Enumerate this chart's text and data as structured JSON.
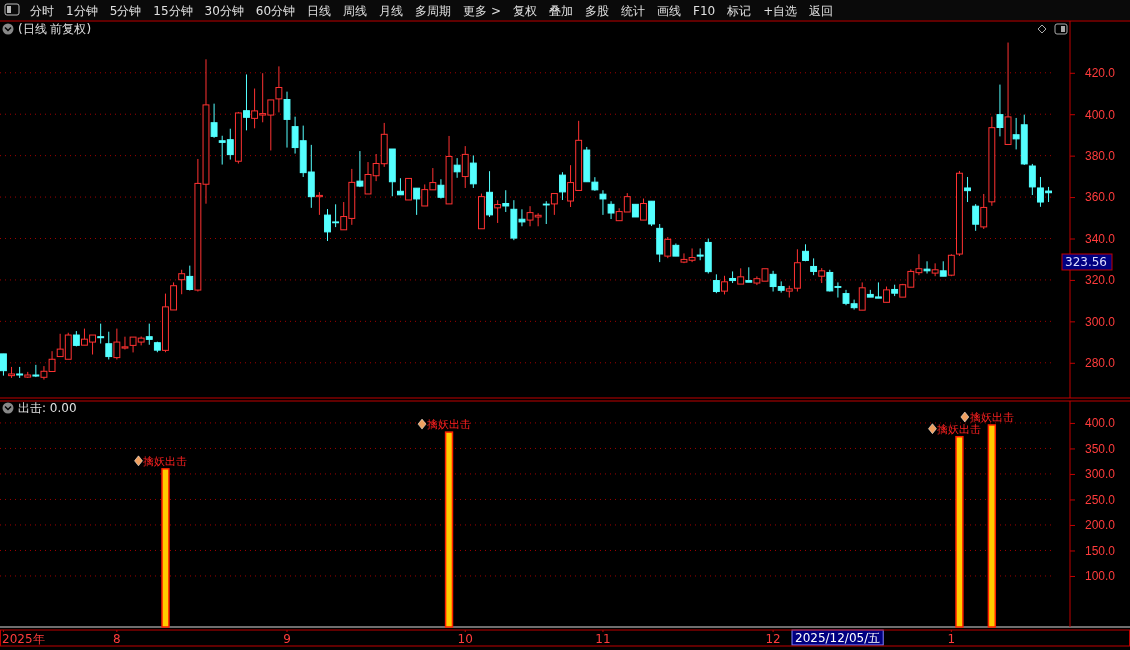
{
  "chart_data": [
    {
      "type": "candlestick",
      "title": "(日线 前复权)",
      "annotations": [
        "分时",
        "1分钟",
        "5分钟",
        "15分钟",
        "30分钟",
        "60分钟",
        "日线",
        "周线",
        "月线",
        "多周期",
        "更多 >",
        "复权",
        "叠加",
        "多股",
        "统计",
        "画线",
        "F10",
        "标记",
        "+自选",
        "返回",
        "323.56"
      ],
      "categories": [
        null,
        null,
        null,
        null,
        null,
        null,
        null,
        null,
        null,
        null,
        null,
        null,
        null,
        null,
        null,
        null,
        null,
        null,
        null,
        null,
        null,
        null,
        null,
        null,
        null,
        null,
        null,
        null,
        null,
        null,
        null,
        null,
        null,
        null,
        null,
        null,
        null,
        null,
        null,
        null,
        null,
        null,
        null,
        null,
        null,
        null,
        null,
        null,
        null,
        null,
        null,
        null,
        null,
        null,
        null,
        null,
        null,
        null,
        null,
        null,
        null,
        null,
        null,
        null,
        null,
        null,
        null,
        null,
        null,
        null,
        null,
        null,
        null,
        null,
        null,
        null,
        null,
        null,
        null,
        null,
        null,
        null,
        null,
        null,
        null,
        null,
        null,
        null,
        null,
        null,
        null,
        null,
        null,
        null,
        null,
        null,
        null,
        null,
        null,
        null,
        null,
        null,
        null,
        null,
        null,
        null,
        null,
        null,
        null,
        null,
        null,
        null,
        null,
        null,
        null,
        null,
        null,
        null,
        null,
        null,
        null,
        null,
        null,
        null,
        null,
        null,
        null,
        null,
        null,
        null
      ],
      "ohlc": [
        [
          284.3,
          284.3,
          273.8,
          276.2
        ],
        [
          273.8,
          278.0,
          272.7,
          274.6
        ],
        [
          274.6,
          278.0,
          272.7,
          274.1
        ],
        [
          273.1,
          275.6,
          272.7,
          274.1
        ],
        [
          274.1,
          279.0,
          273.1,
          273.6
        ],
        [
          273.0,
          278.4,
          271.9,
          275.9
        ],
        [
          275.8,
          285.6,
          275.8,
          281.7
        ],
        [
          283.0,
          294.0,
          283.0,
          286.6
        ],
        [
          281.7,
          294.5,
          281.7,
          293.4
        ],
        [
          293.4,
          295.3,
          287.9,
          288.4
        ],
        [
          288.5,
          296.5,
          288.5,
          291.4
        ],
        [
          290.0,
          293.4,
          284.0,
          293.4
        ],
        [
          292.6,
          298.9,
          289.3,
          292.1
        ],
        [
          289.2,
          295.0,
          281.6,
          283.0
        ],
        [
          282.5,
          296.5,
          281.6,
          290.0
        ],
        [
          287.1,
          292.6,
          286.4,
          287.7
        ],
        [
          288.4,
          292.4,
          285.0,
          292.4
        ],
        [
          290.0,
          292.7,
          288.4,
          291.9
        ],
        [
          292.6,
          298.9,
          288.7,
          291.3
        ],
        [
          289.7,
          290.2,
          285.1,
          286.1
        ],
        [
          286.0,
          313.4,
          285.1,
          307.0
        ],
        [
          305.5,
          318.8,
          305.5,
          317.2
        ],
        [
          320.1,
          324.9,
          313.1,
          323.0
        ],
        [
          321.7,
          326.9,
          314.9,
          315.4
        ],
        [
          315.1,
          378.4,
          314.4,
          366.6
        ],
        [
          366.2,
          426.5,
          356.8,
          404.5
        ],
        [
          395.9,
          405.1,
          388.6,
          389.3
        ],
        [
          387.2,
          389.6,
          375.7,
          386.4
        ],
        [
          387.7,
          393.0,
          378.1,
          380.5
        ],
        [
          377.3,
          401.1,
          376.2,
          400.6
        ],
        [
          401.7,
          419.2,
          392.2,
          398.5
        ],
        [
          398.0,
          412.4,
          393.2,
          401.6
        ],
        [
          399.6,
          419.8,
          396.1,
          400.3
        ],
        [
          399.6,
          406.9,
          382.5,
          406.9
        ],
        [
          407.4,
          423.1,
          400.9,
          412.9
        ],
        [
          407.1,
          410.9,
          383.9,
          397.5
        ],
        [
          394.0,
          398.8,
          381.0,
          383.9
        ],
        [
          387.2,
          394.5,
          369.7,
          371.8
        ],
        [
          372.1,
          385.2,
          354.8,
          360.2
        ],
        [
          360.2,
          362.4,
          351.4,
          360.8
        ],
        [
          351.3,
          354.2,
          338.8,
          343.2
        ],
        [
          348.0,
          356.5,
          345.5,
          347.6
        ],
        [
          344.2,
          357.6,
          344.2,
          350.6
        ],
        [
          349.7,
          373.6,
          346.6,
          367.1
        ],
        [
          367.7,
          382.2,
          364.8,
          365.3
        ],
        [
          361.5,
          376.9,
          361.5,
          370.9
        ],
        [
          370.3,
          380.8,
          367.7,
          376.2
        ],
        [
          376.1,
          395.8,
          374.6,
          390.3
        ],
        [
          383.2,
          383.2,
          360.4,
          367.4
        ],
        [
          362.8,
          369.1,
          361.1,
          361.1
        ],
        [
          358.6,
          369.0,
          358.6,
          369.0
        ],
        [
          364.3,
          364.3,
          351.4,
          359.1
        ],
        [
          355.7,
          366.1,
          355.7,
          363.6
        ],
        [
          363.5,
          374.0,
          363.5,
          367.0
        ],
        [
          365.7,
          368.6,
          359.3,
          359.9
        ],
        [
          356.7,
          389.5,
          356.7,
          379.6
        ],
        [
          375.4,
          378.8,
          369.3,
          372.2
        ],
        [
          369.9,
          384.6,
          364.4,
          380.6
        ],
        [
          376.4,
          380.1,
          364.4,
          366.4
        ],
        [
          344.7,
          361.7,
          344.7,
          360.2
        ],
        [
          362.3,
          372.5,
          350.4,
          351.4
        ],
        [
          354.8,
          358.5,
          347.5,
          356.4
        ],
        [
          356.9,
          363.3,
          352.8,
          355.7
        ],
        [
          354.1,
          358.5,
          339.2,
          340.2
        ],
        [
          349.3,
          354.1,
          345.9,
          348.0
        ],
        [
          348.9,
          355.6,
          345.9,
          352.5
        ],
        [
          350.4,
          352.2,
          345.9,
          351.2
        ],
        [
          356.6,
          358.0,
          347.0,
          356.2
        ],
        [
          356.7,
          361.7,
          351.4,
          361.7
        ],
        [
          370.6,
          372.0,
          358.6,
          362.5
        ],
        [
          358.1,
          375.4,
          355.2,
          367.0
        ],
        [
          363.2,
          396.8,
          363.2,
          387.4
        ],
        [
          382.7,
          384.2,
          367.4,
          367.4
        ],
        [
          367.2,
          369.6,
          363.0,
          363.5
        ],
        [
          361.4,
          363.3,
          351.4,
          359.1
        ],
        [
          356.5,
          358.0,
          349.4,
          352.3
        ],
        [
          348.6,
          354.6,
          348.6,
          353.0
        ],
        [
          352.8,
          361.9,
          352.8,
          360.2
        ],
        [
          356.5,
          356.5,
          350.4,
          350.4
        ],
        [
          348.9,
          359.3,
          348.9,
          356.9
        ],
        [
          358.0,
          358.0,
          346.0,
          347.0
        ],
        [
          344.9,
          347.0,
          328.6,
          332.5
        ],
        [
          331.5,
          340.7,
          330.5,
          339.6
        ],
        [
          336.7,
          337.6,
          331.5,
          331.5
        ],
        [
          328.6,
          332.8,
          328.1,
          329.9
        ],
        [
          329.5,
          335.2,
          328.6,
          330.8
        ],
        [
          332.0,
          335.2,
          329.5,
          331.5
        ],
        [
          338.1,
          340.0,
          323.1,
          324.0
        ],
        [
          319.7,
          322.7,
          313.6,
          314.4
        ],
        [
          314.6,
          322.0,
          313.0,
          319.1
        ],
        [
          320.7,
          324.1,
          318.5,
          319.7
        ],
        [
          318.0,
          325.6,
          318.0,
          321.5
        ],
        [
          319.7,
          326.1,
          318.9,
          318.9
        ],
        [
          318.5,
          321.7,
          317.5,
          320.6
        ],
        [
          319.4,
          325.4,
          319.4,
          325.4
        ],
        [
          322.7,
          324.4,
          314.4,
          316.8
        ],
        [
          316.8,
          319.3,
          313.9,
          315.0
        ],
        [
          314.6,
          317.2,
          311.5,
          315.7
        ],
        [
          316.0,
          334.8,
          314.4,
          328.3
        ],
        [
          333.8,
          337.2,
          329.0,
          329.4
        ],
        [
          326.5,
          330.4,
          322.3,
          324.1
        ],
        [
          321.8,
          325.7,
          318.5,
          324.4
        ],
        [
          323.6,
          324.9,
          314.4,
          314.7
        ],
        [
          316.8,
          318.8,
          311.5,
          316.4
        ],
        [
          313.4,
          315.2,
          307.8,
          308.7
        ],
        [
          308.5,
          310.5,
          305.7,
          306.6
        ],
        [
          305.4,
          318.8,
          305.4,
          316.2
        ],
        [
          313.0,
          315.2,
          311.7,
          311.7
        ],
        [
          311.8,
          318.8,
          311.2,
          311.2
        ],
        [
          309.2,
          316.8,
          309.2,
          315.2
        ],
        [
          315.4,
          317.7,
          312.2,
          313.6
        ],
        [
          311.7,
          318.1,
          311.7,
          317.7
        ],
        [
          316.5,
          325.1,
          316.5,
          324.1
        ],
        [
          323.5,
          332.4,
          322.3,
          325.4
        ],
        [
          325.2,
          329.0,
          323.1,
          324.4
        ],
        [
          323.3,
          328.0,
          321.8,
          324.9
        ],
        [
          324.4,
          329.0,
          321.8,
          321.8
        ],
        [
          322.3,
          332.4,
          321.8,
          331.9
        ],
        [
          332.5,
          372.6,
          331.6,
          371.5
        ],
        [
          364.4,
          369.7,
          357.6,
          363.1
        ],
        [
          355.6,
          356.6,
          343.7,
          346.9
        ],
        [
          345.6,
          361.5,
          344.6,
          355.0
        ],
        [
          357.7,
          398.8,
          355.8,
          393.5
        ],
        [
          399.8,
          414.3,
          389.3,
          393.6
        ],
        [
          385.4,
          434.6,
          385.4,
          398.7
        ],
        [
          390.1,
          398.2,
          383.0,
          388.1
        ],
        [
          394.9,
          399.8,
          375.5,
          376.0
        ],
        [
          375.0,
          376.0,
          361.0,
          364.9
        ],
        [
          364.4,
          369.7,
          355.3,
          357.6
        ],
        [
          362.9,
          364.9,
          357.6,
          362.1
        ]
      ],
      "ylim": [
        263,
        445
      ],
      "yticks": [
        {
          "value": 280,
          "label": "280.0"
        },
        {
          "value": 300,
          "label": "300.0"
        },
        {
          "value": 320,
          "label": "320.0"
        },
        {
          "value": 340,
          "label": "340.0"
        },
        {
          "value": 360,
          "label": "360.0"
        },
        {
          "value": 380,
          "label": "380.0"
        },
        {
          "value": 400,
          "label": "400.0"
        },
        {
          "value": 420,
          "label": "420.0"
        }
      ],
      "grid": "y",
      "tick_labels": "y"
    },
    {
      "type": "bar",
      "title": "出击: 0.00",
      "color": "#ffcc00",
      "annotations": [
        "2025/12/05/五"
      ],
      "categories": [
        "2025年",
        null,
        null,
        null,
        null,
        null,
        null,
        null,
        null,
        null,
        null,
        null,
        null,
        null,
        "8",
        null,
        null,
        null,
        null,
        null,
        null,
        null,
        null,
        null,
        null,
        null,
        null,
        null,
        null,
        null,
        null,
        null,
        null,
        null,
        null,
        "9",
        null,
        null,
        null,
        null,
        null,
        null,
        null,
        null,
        null,
        null,
        null,
        null,
        null,
        null,
        null,
        null,
        null,
        null,
        null,
        null,
        null,
        "10",
        null,
        null,
        null,
        null,
        null,
        null,
        null,
        null,
        null,
        null,
        null,
        null,
        null,
        null,
        null,
        null,
        "11",
        null,
        null,
        null,
        null,
        null,
        null,
        null,
        null,
        null,
        null,
        null,
        null,
        null,
        null,
        null,
        null,
        null,
        null,
        null,
        null,
        "12",
        null,
        null,
        null,
        null,
        null,
        null,
        null,
        null,
        null,
        null,
        null,
        null,
        null,
        null,
        null,
        null,
        null,
        null,
        null,
        null,
        null,
        "1",
        null,
        null,
        null,
        null,
        null,
        null,
        null,
        null,
        null,
        null,
        null,
        null
      ],
      "values": [
        null,
        null,
        null,
        null,
        null,
        null,
        null,
        null,
        null,
        null,
        null,
        null,
        null,
        null,
        null,
        null,
        null,
        null,
        null,
        null,
        310,
        null,
        null,
        null,
        null,
        null,
        null,
        null,
        null,
        null,
        null,
        null,
        null,
        null,
        null,
        null,
        null,
        null,
        null,
        null,
        null,
        null,
        null,
        null,
        null,
        null,
        null,
        null,
        null,
        null,
        null,
        null,
        null,
        null,
        null,
        382,
        null,
        null,
        null,
        null,
        null,
        null,
        null,
        null,
        null,
        null,
        null,
        null,
        null,
        null,
        null,
        null,
        null,
        null,
        null,
        null,
        null,
        null,
        null,
        null,
        null,
        null,
        null,
        null,
        null,
        null,
        null,
        null,
        null,
        null,
        null,
        null,
        null,
        null,
        null,
        null,
        null,
        null,
        null,
        null,
        null,
        null,
        null,
        null,
        null,
        null,
        null,
        null,
        null,
        null,
        null,
        null,
        null,
        null,
        null,
        null,
        null,
        null,
        373,
        null,
        null,
        null,
        396,
        null,
        null,
        null,
        null,
        null,
        null,
        null
      ],
      "value_labels": [
        null,
        null,
        null,
        null,
        null,
        null,
        null,
        null,
        null,
        null,
        null,
        null,
        null,
        null,
        null,
        null,
        null,
        null,
        null,
        null,
        "擒妖出击",
        null,
        null,
        null,
        null,
        null,
        null,
        null,
        null,
        null,
        null,
        null,
        null,
        null,
        null,
        null,
        null,
        null,
        null,
        null,
        null,
        null,
        null,
        null,
        null,
        null,
        null,
        null,
        null,
        null,
        null,
        null,
        null,
        null,
        null,
        "擒妖出击",
        null,
        null,
        null,
        null,
        null,
        null,
        null,
        null,
        null,
        null,
        null,
        null,
        null,
        null,
        null,
        null,
        null,
        null,
        null,
        null,
        null,
        null,
        null,
        null,
        null,
        null,
        null,
        null,
        null,
        null,
        null,
        null,
        null,
        null,
        null,
        null,
        null,
        null,
        null,
        null,
        null,
        null,
        null,
        null,
        null,
        null,
        null,
        null,
        null,
        null,
        null,
        null,
        null,
        null,
        null,
        null,
        null,
        null,
        null,
        null,
        null,
        null,
        "擒妖出击",
        null,
        null,
        null,
        "擒妖出击",
        null,
        null,
        null,
        null,
        null,
        null,
        null
      ],
      "ylim": [
        0,
        443
      ],
      "yticks": [
        {
          "value": 100,
          "label": "100.0"
        },
        {
          "value": 150,
          "label": "150.0"
        },
        {
          "value": 200,
          "label": "200.0"
        },
        {
          "value": 250,
          "label": "250.0"
        },
        {
          "value": 300,
          "label": "300.0"
        },
        {
          "value": 350,
          "label": "350.0"
        },
        {
          "value": 400,
          "label": "400.0"
        }
      ],
      "grid": "y"
    }
  ]
}
